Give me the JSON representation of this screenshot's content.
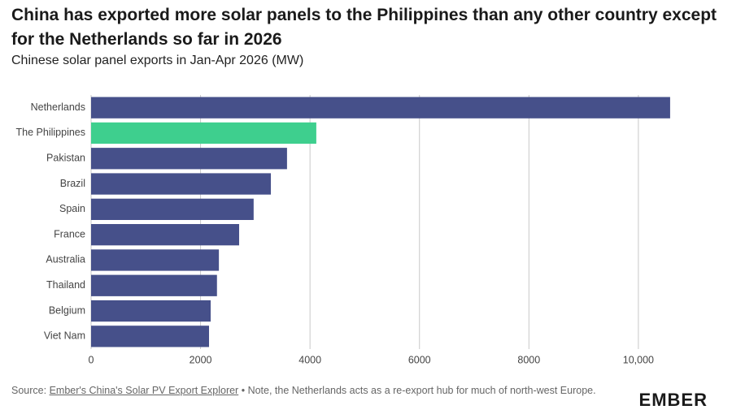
{
  "chart_data": {
    "type": "barh",
    "title": "China has exported more solar panels to the Philippines than any other country except for the Netherlands so far in 2026",
    "subtitle": "Chinese solar panel exports in Jan-Apr 2026 (MW)",
    "categories": [
      "Netherlands",
      "The Philippines",
      "Pakistan",
      "Brazil",
      "Spain",
      "France",
      "Australia",
      "Thailand",
      "Belgium",
      "Viet Nam"
    ],
    "values": [
      10580,
      4115,
      3580,
      3285,
      2970,
      2705,
      2335,
      2300,
      2185,
      2155
    ],
    "colors": [
      "#46508a",
      "#3ecf8e",
      "#46508a",
      "#46508a",
      "#46508a",
      "#46508a",
      "#46508a",
      "#46508a",
      "#46508a",
      "#46508a"
    ],
    "xlim": [
      0,
      10700
    ],
    "xticks": [
      0,
      2000,
      4000,
      6000,
      8000,
      {
        "value": 10000,
        "label": "10,000"
      }
    ],
    "grid": true,
    "source_prefix": "Source:",
    "source_link": "Ember's China's Solar PV Export Explorer",
    "source_note": "• Note, the Netherlands acts as a re-export hub for much of north-west Europe.",
    "logo": "EMBER"
  }
}
